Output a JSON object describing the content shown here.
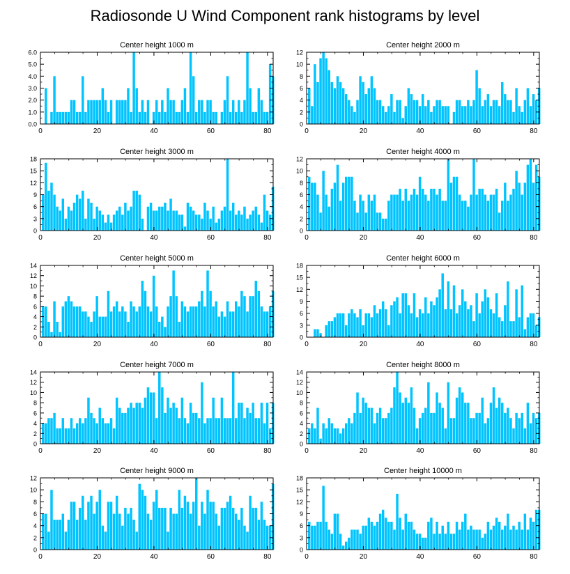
{
  "figure_title": "Radiosonde U Wind Component rank histograms by level",
  "colors": {
    "bar": "#00c4ff",
    "axis": "#000000",
    "background": "#ffffff"
  },
  "chart_data": [
    {
      "type": "bar",
      "title": "Center height 1000 m",
      "xlim": [
        0,
        82
      ],
      "ylim": [
        0,
        6
      ],
      "xticks": [
        0,
        20,
        40,
        60,
        80
      ],
      "yticks": [
        0,
        1,
        2,
        3,
        4,
        5,
        6
      ],
      "ytick_labels": [
        "0.0",
        "1.0",
        "2.0",
        "3.0",
        "4.0",
        "5.0",
        "6.0"
      ],
      "values": [
        0,
        3,
        0,
        1,
        4,
        1,
        1,
        1,
        1,
        1,
        2,
        2,
        1,
        1,
        4,
        1,
        2,
        2,
        2,
        2,
        2,
        3,
        2,
        1,
        2,
        0,
        2,
        2,
        2,
        2,
        3,
        1,
        6,
        3,
        1,
        2,
        1,
        2,
        0,
        1,
        2,
        1,
        2,
        1,
        3,
        2,
        2,
        1,
        1,
        2,
        3,
        1,
        6,
        4,
        1,
        2,
        2,
        1,
        2,
        2,
        1,
        1,
        0,
        1,
        2,
        4,
        1,
        2,
        1,
        2,
        1,
        2,
        6,
        3,
        1,
        1,
        3,
        2,
        1,
        1,
        5,
        4
      ]
    },
    {
      "type": "bar",
      "title": "Center height 2000 m",
      "xlim": [
        0,
        82
      ],
      "ylim": [
        0,
        12
      ],
      "xticks": [
        0,
        20,
        40,
        60,
        80
      ],
      "yticks": [
        0,
        2,
        4,
        6,
        8,
        10,
        12
      ],
      "ytick_labels": [
        "0",
        "2",
        "4",
        "6",
        "8",
        "10",
        "12"
      ],
      "values": [
        6,
        3,
        10,
        7,
        11,
        12,
        11,
        9,
        7,
        6,
        8,
        7,
        6,
        5,
        4,
        3,
        2,
        4,
        8,
        7,
        5,
        6,
        8,
        6,
        4,
        4,
        3,
        2,
        3,
        5,
        2,
        4,
        4,
        1,
        3,
        6,
        5,
        4,
        4,
        3,
        5,
        3,
        4,
        2,
        3,
        4,
        4,
        3,
        3,
        3,
        0,
        2,
        4,
        4,
        3,
        3,
        4,
        3,
        4,
        9,
        6,
        3,
        4,
        5,
        3,
        4,
        4,
        3,
        7,
        5,
        4,
        4,
        2,
        6,
        3,
        2,
        4,
        6,
        3,
        5,
        4,
        6
      ]
    },
    {
      "type": "bar",
      "title": "Center height 3000 m",
      "xlim": [
        0,
        82
      ],
      "ylim": [
        0,
        18
      ],
      "xticks": [
        0,
        20,
        40,
        60,
        80
      ],
      "yticks": [
        0,
        3,
        6,
        9,
        12,
        15,
        18
      ],
      "ytick_labels": [
        "0",
        "3",
        "6",
        "9",
        "12",
        "15",
        "18"
      ],
      "values": [
        9,
        17,
        10,
        12,
        9,
        6,
        5,
        8,
        3,
        6,
        5,
        7,
        9,
        8,
        10,
        3,
        8,
        7,
        3,
        6,
        5,
        4,
        2,
        4,
        2,
        4,
        5,
        6,
        4,
        7,
        5,
        6,
        10,
        10,
        9,
        3,
        0,
        6,
        7,
        5,
        5,
        6,
        6,
        7,
        5,
        8,
        5,
        5,
        4,
        4,
        1,
        7,
        6,
        5,
        4,
        4,
        3,
        7,
        5,
        3,
        6,
        2,
        3,
        5,
        6,
        18,
        5,
        7,
        4,
        5,
        4,
        6,
        3,
        4,
        5,
        6,
        4,
        2,
        9,
        5,
        4,
        11
      ]
    },
    {
      "type": "bar",
      "title": "Center height 4000 m",
      "xlim": [
        0,
        82
      ],
      "ylim": [
        0,
        12
      ],
      "xticks": [
        0,
        20,
        40,
        60,
        80
      ],
      "yticks": [
        0,
        2,
        4,
        6,
        8,
        10,
        12
      ],
      "ytick_labels": [
        "0",
        "2",
        "4",
        "6",
        "8",
        "10",
        "12"
      ],
      "values": [
        9,
        8,
        8,
        6,
        3,
        10,
        6,
        4,
        7,
        8,
        11,
        5,
        8,
        9,
        9,
        9,
        5,
        3,
        6,
        5,
        3,
        6,
        5,
        6,
        3,
        3,
        2,
        2,
        5,
        6,
        6,
        6,
        7,
        5,
        7,
        5,
        6,
        7,
        6,
        9,
        7,
        6,
        5,
        7,
        7,
        6,
        7,
        5,
        5,
        12,
        8,
        9,
        9,
        6,
        5,
        5,
        4,
        6,
        12,
        6,
        7,
        7,
        6,
        5,
        6,
        6,
        7,
        3,
        5,
        8,
        5,
        6,
        7,
        10,
        8,
        6,
        8,
        11,
        12,
        8,
        11,
        9
      ]
    },
    {
      "type": "bar",
      "title": "Center height 5000 m",
      "xlim": [
        0,
        82
      ],
      "ylim": [
        0,
        14
      ],
      "xticks": [
        0,
        20,
        40,
        60,
        80
      ],
      "yticks": [
        0,
        2,
        4,
        6,
        8,
        10,
        12,
        14
      ],
      "ytick_labels": [
        "0",
        "2",
        "4",
        "6",
        "8",
        "10",
        "12",
        "14"
      ],
      "values": [
        6,
        6,
        3,
        1,
        7,
        3,
        1,
        6,
        7,
        8,
        7,
        6,
        6,
        6,
        5,
        5,
        4,
        3,
        5,
        8,
        4,
        4,
        4,
        9,
        5,
        6,
        7,
        5,
        6,
        5,
        3,
        7,
        6,
        5,
        6,
        11,
        9,
        6,
        5,
        12,
        6,
        3,
        4,
        2,
        6,
        8,
        13,
        8,
        3,
        7,
        6,
        5,
        6,
        6,
        6,
        7,
        9,
        6,
        13,
        9,
        6,
        7,
        4,
        5,
        4,
        7,
        5,
        5,
        7,
        6,
        9,
        8,
        5,
        8,
        8,
        11,
        9,
        6,
        5,
        5,
        6,
        9
      ]
    },
    {
      "type": "bar",
      "title": "Center height 6000 m",
      "xlim": [
        0,
        82
      ],
      "ylim": [
        0,
        18
      ],
      "xticks": [
        0,
        20,
        40,
        60,
        80
      ],
      "yticks": [
        0,
        3,
        6,
        9,
        12,
        15,
        18
      ],
      "ytick_labels": [
        "0",
        "3",
        "6",
        "9",
        "12",
        "15",
        "18"
      ],
      "values": [
        0,
        0,
        2,
        2,
        1,
        0,
        3,
        4,
        4,
        5,
        6,
        6,
        6,
        3,
        6,
        7,
        6,
        5,
        7,
        3,
        6,
        6,
        5,
        8,
        6,
        7,
        9,
        7,
        3,
        8,
        9,
        10,
        6,
        11,
        11,
        8,
        6,
        11,
        5,
        7,
        6,
        10,
        6,
        9,
        8,
        10,
        12,
        16,
        7,
        14,
        7,
        13,
        6,
        8,
        12,
        9,
        7,
        8,
        4,
        11,
        6,
        9,
        12,
        10,
        7,
        6,
        11,
        5,
        4,
        8,
        14,
        4,
        4,
        12,
        5,
        13,
        2,
        5,
        6,
        6,
        3,
        5
      ]
    },
    {
      "type": "bar",
      "title": "Center height 7000 m",
      "xlim": [
        0,
        82
      ],
      "ylim": [
        0,
        14
      ],
      "xticks": [
        0,
        20,
        40,
        60,
        80
      ],
      "yticks": [
        0,
        2,
        4,
        6,
        8,
        10,
        12,
        14
      ],
      "ytick_labels": [
        "0",
        "2",
        "4",
        "6",
        "8",
        "10",
        "12",
        "14"
      ],
      "values": [
        4,
        4,
        5,
        5,
        6,
        3,
        3,
        5,
        3,
        3,
        5,
        3,
        4,
        5,
        4,
        5,
        9,
        6,
        5,
        4,
        7,
        5,
        4,
        4,
        5,
        3,
        9,
        7,
        6,
        6,
        7,
        8,
        7,
        8,
        8,
        7,
        9,
        11,
        10,
        10,
        5,
        14,
        11,
        6,
        9,
        7,
        8,
        7,
        5,
        9,
        5,
        4,
        8,
        6,
        6,
        5,
        12,
        4,
        5,
        5,
        9,
        5,
        5,
        9,
        5,
        5,
        5,
        14,
        5,
        8,
        8,
        5,
        7,
        6,
        8,
        5,
        5,
        8,
        4,
        8,
        3,
        8
      ]
    },
    {
      "type": "bar",
      "title": "Center height 8000 m",
      "xlim": [
        0,
        82
      ],
      "ylim": [
        0,
        14
      ],
      "xticks": [
        0,
        20,
        40,
        60,
        80
      ],
      "yticks": [
        0,
        2,
        4,
        6,
        8,
        10,
        12,
        14
      ],
      "ytick_labels": [
        "0",
        "2",
        "4",
        "6",
        "8",
        "10",
        "12",
        "14"
      ],
      "values": [
        3,
        4,
        3,
        7,
        1,
        4,
        3,
        5,
        4,
        3,
        3,
        2,
        3,
        4,
        5,
        4,
        6,
        10,
        6,
        9,
        8,
        7,
        7,
        4,
        6,
        7,
        5,
        5,
        6,
        7,
        11,
        14,
        10,
        8,
        9,
        8,
        11,
        7,
        3,
        5,
        6,
        7,
        12,
        6,
        6,
        10,
        8,
        7,
        3,
        12,
        5,
        5,
        9,
        11,
        10,
        8,
        8,
        5,
        5,
        6,
        6,
        9,
        4,
        5,
        8,
        11,
        7,
        9,
        8,
        6,
        7,
        5,
        3,
        6,
        5,
        6,
        3,
        8,
        4,
        6,
        5,
        6
      ]
    },
    {
      "type": "bar",
      "title": "Center height 9000 m",
      "xlim": [
        0,
        82
      ],
      "ylim": [
        0,
        12
      ],
      "xticks": [
        0,
        20,
        40,
        60,
        80
      ],
      "yticks": [
        0,
        2,
        4,
        6,
        8,
        10,
        12
      ],
      "ytick_labels": [
        "0",
        "2",
        "4",
        "6",
        "8",
        "10",
        "12"
      ],
      "values": [
        6,
        6,
        3,
        10,
        5,
        5,
        5,
        6,
        3,
        5,
        8,
        8,
        5,
        7,
        9,
        5,
        8,
        9,
        6,
        8,
        10,
        4,
        3,
        8,
        8,
        6,
        9,
        6,
        4,
        7,
        6,
        7,
        5,
        3,
        11,
        10,
        9,
        6,
        5,
        8,
        10,
        7,
        7,
        7,
        3,
        7,
        6,
        6,
        10,
        7,
        9,
        8,
        6,
        8,
        12,
        4,
        8,
        6,
        10,
        8,
        8,
        6,
        4,
        7,
        7,
        8,
        9,
        7,
        6,
        5,
        7,
        4,
        3,
        9,
        7,
        7,
        5,
        8,
        5,
        4,
        4,
        11
      ]
    },
    {
      "type": "bar",
      "title": "Center height 10000 m",
      "xlim": [
        0,
        82
      ],
      "ylim": [
        0,
        18
      ],
      "xticks": [
        0,
        20,
        40,
        60,
        80
      ],
      "yticks": [
        0,
        3,
        6,
        9,
        12,
        15,
        18
      ],
      "ytick_labels": [
        "0",
        "3",
        "6",
        "9",
        "12",
        "15",
        "18"
      ],
      "values": [
        7,
        6,
        6,
        7,
        7,
        16,
        7,
        5,
        4,
        9,
        9,
        4,
        1,
        2,
        3,
        5,
        5,
        5,
        4,
        6,
        6,
        8,
        7,
        6,
        7,
        9,
        10,
        8,
        7,
        7,
        5,
        14,
        8,
        5,
        9,
        7,
        7,
        5,
        4,
        4,
        3,
        3,
        7,
        8,
        4,
        7,
        4,
        6,
        4,
        7,
        4,
        4,
        7,
        5,
        7,
        9,
        5,
        6,
        5,
        5,
        5,
        3,
        4,
        7,
        5,
        6,
        8,
        7,
        5,
        6,
        9,
        5,
        6,
        5,
        7,
        5,
        9,
        5,
        8,
        7,
        10,
        10
      ]
    }
  ]
}
